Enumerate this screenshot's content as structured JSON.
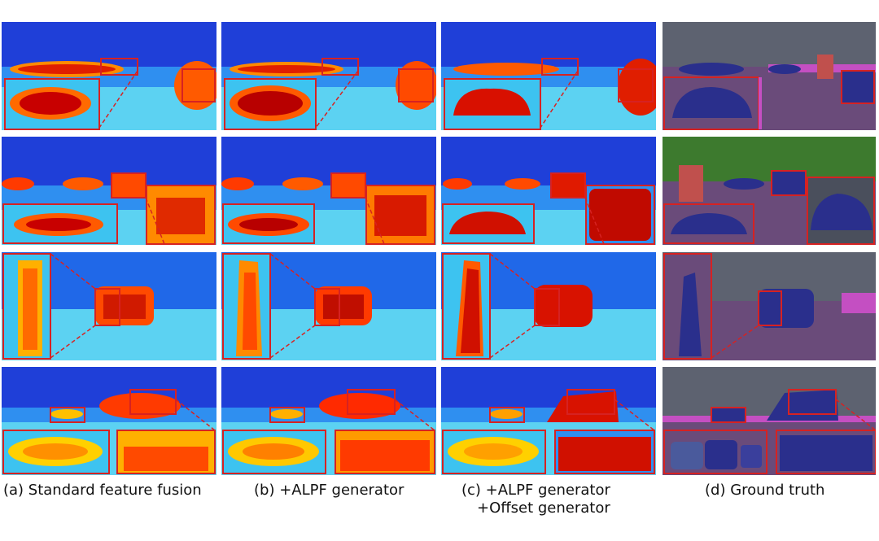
{
  "colors": {
    "heat_low": "#1e3fd6",
    "heat_mid": "#20c8f0",
    "heat_high": "#ff2a00",
    "heat_core": "#b00000",
    "highlight_box": "#d62222",
    "gt_road": "#6a4b7a",
    "gt_car": "#2a2f8c",
    "gt_building": "#5d6270",
    "gt_vegetation": "#3d7a2e",
    "gt_sidewalk": "#c44fc2"
  },
  "columns": [
    {
      "key": "a",
      "caption": "(a)  Standard feature fusion"
    },
    {
      "key": "b",
      "caption": "(b) +ALPF generator"
    },
    {
      "key": "c",
      "caption": "(c) +ALPF generator",
      "caption_line2": "+Offset generator"
    },
    {
      "key": "d",
      "caption": "(d) Ground truth"
    }
  ]
}
